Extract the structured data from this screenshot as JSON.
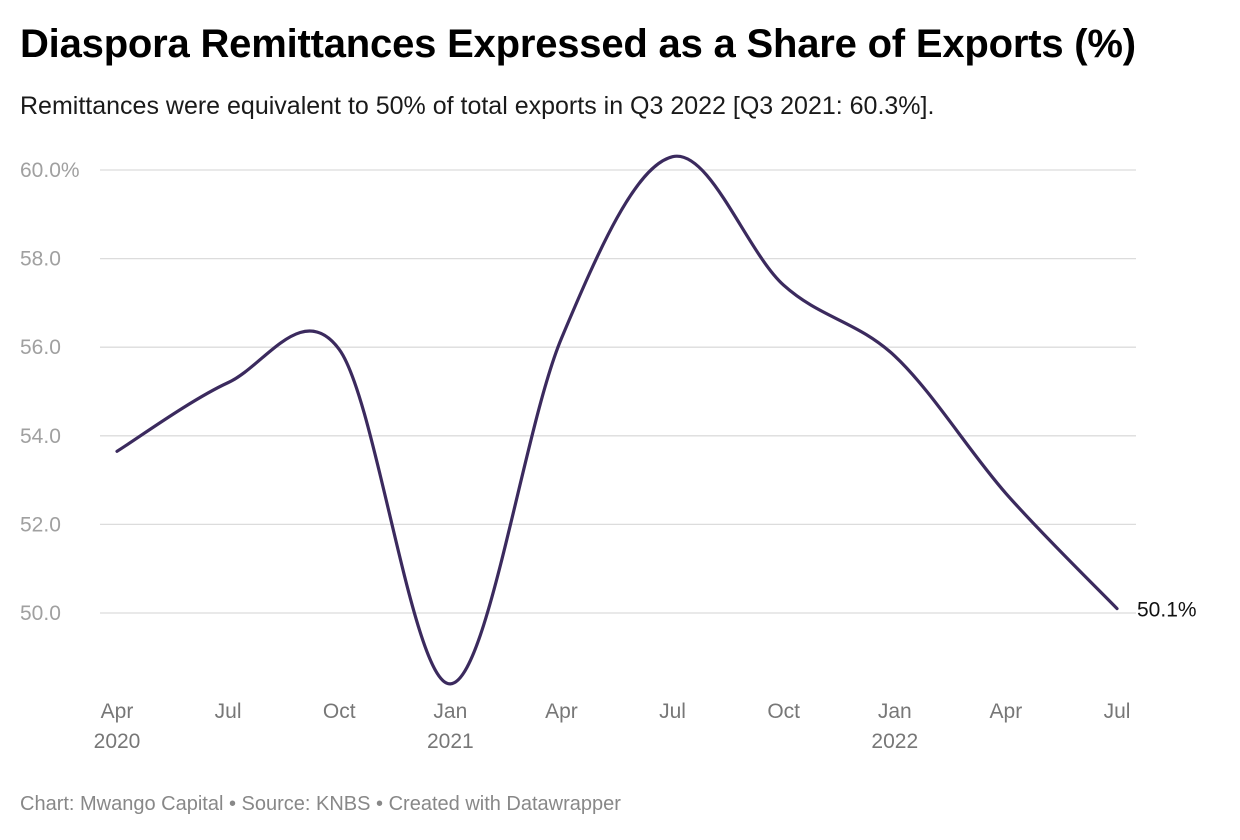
{
  "header": {
    "title": "Diaspora Remittances Expressed as a Share of Exports (%)",
    "subtitle": "Remittances were equivalent to 50% of total exports in Q3 2022 [Q3 2021: 60.3%]."
  },
  "footer": {
    "credit": "Chart: Mwango Capital • Source: KNBS • Created with Datawrapper"
  },
  "chart_data": {
    "type": "line",
    "title": "Diaspora Remittances Expressed as a Share of Exports (%)",
    "subtitle": "Remittances were equivalent to 50% of total exports in Q3 2022 [Q3 2021: 60.3%].",
    "x": [
      "Apr 2020",
      "Jul 2020",
      "Oct 2020",
      "Jan 2021",
      "Apr 2021",
      "Jul 2021",
      "Oct 2021",
      "Jan 2022",
      "Apr 2022",
      "Jul 2022"
    ],
    "series": [
      {
        "values": [
          53.65,
          55.2,
          55.95,
          48.4,
          56.2,
          60.3,
          57.4,
          55.8,
          52.7,
          50.1
        ],
        "color": "#3b2a5e"
      }
    ],
    "ylim": [
      48,
      60.6
    ],
    "yticks": [
      {
        "value": 50,
        "label": "50.0"
      },
      {
        "value": 52,
        "label": "52.0"
      },
      {
        "value": 54,
        "label": "54.0"
      },
      {
        "value": 56,
        "label": "56.0"
      },
      {
        "value": 58,
        "label": "58.0"
      },
      {
        "value": 60,
        "label": "60.0%"
      }
    ],
    "xticks": [
      {
        "label": "Apr",
        "sub": "2020"
      },
      {
        "label": "Jul",
        "sub": ""
      },
      {
        "label": "Oct",
        "sub": ""
      },
      {
        "label": "Jan",
        "sub": "2021"
      },
      {
        "label": "Apr",
        "sub": ""
      },
      {
        "label": "Jul",
        "sub": ""
      },
      {
        "label": "Oct",
        "sub": ""
      },
      {
        "label": "Jan",
        "sub": "2022"
      },
      {
        "label": "Apr",
        "sub": ""
      },
      {
        "label": "Jul",
        "sub": ""
      }
    ],
    "end_label": "50.1%",
    "grid": true,
    "gridline_color": "#dcdcdc"
  }
}
